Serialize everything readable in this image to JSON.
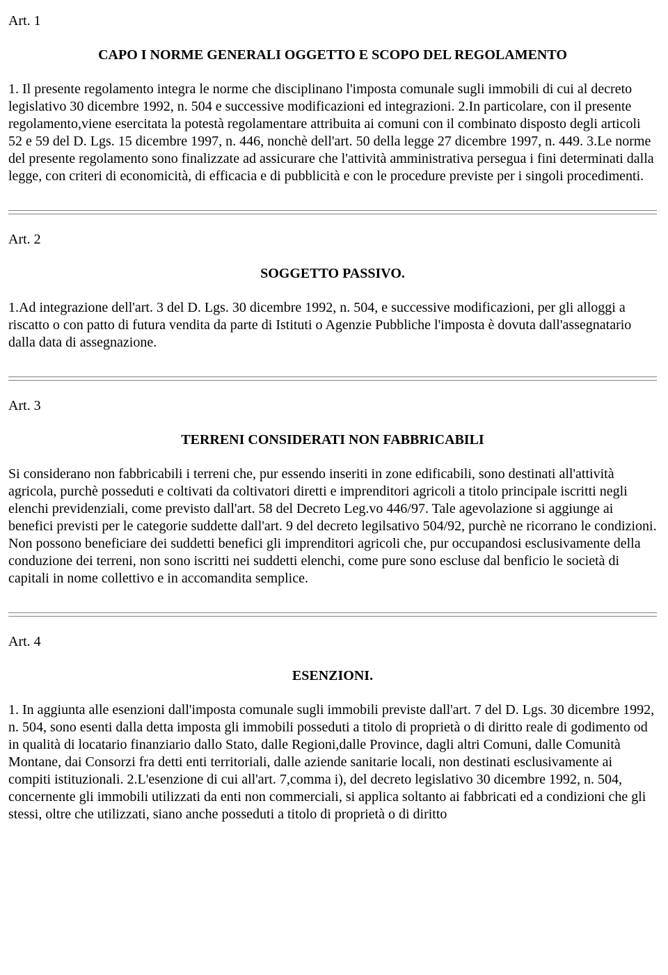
{
  "article1": {
    "label": "Art. 1",
    "title": "CAPO I NORME GENERALI OGGETTO E SCOPO DEL REGOLAMENTO",
    "body": "1. Il presente regolamento integra le norme che disciplinano l'imposta comunale sugli immobili di cui al decreto legislativo 30 dicembre 1992, n. 504 e successive modificazioni ed integrazioni. 2.In particolare, con il presente regolamento,viene esercitata la potestà regolamentare attribuita ai comuni con il combinato disposto degli articoli 52 e 59 del D. Lgs. 15 dicembre 1997, n. 446, nonchè dell'art. 50 della legge 27 dicembre 1997, n. 449. 3.Le norme del presente regolamento sono finalizzate ad assicurare che l'attività amministrativa persegua i fini determinati dalla legge, con criteri di economicità, di efficacia e di pubblicità e con le procedure previste per i singoli procedimenti."
  },
  "article2": {
    "label": "Art. 2",
    "title": "SOGGETTO PASSIVO.",
    "body": "1.Ad integrazione dell'art. 3 del D. Lgs. 30 dicembre 1992, n. 504, e successive modificazioni, per gli alloggi a riscatto o con patto di futura vendita da parte di Istituti o Agenzie Pubbliche l'imposta è dovuta dall'assegnatario dalla data di assegnazione."
  },
  "article3": {
    "label": "Art. 3",
    "title": "TERRENI CONSIDERATI NON FABBRICABILI",
    "body": "Si considerano non fabbricabili i terreni che, pur essendo inseriti in zone edificabili, sono destinati all'attività agricola, purchè posseduti e coltivati da coltivatori diretti e imprenditori agricoli a titolo principale iscritti negli elenchi previdenziali, come previsto dall'art. 58 del Decreto Leg.vo 446/97. Tale agevolazione si aggiunge ai benefici previsti per le categorie suddette dall'art. 9 del decreto legilsativo 504/92, purchè ne ricorrano le condizioni. Non possono beneficiare dei suddetti benefici gli imprenditori agricoli che, pur occupandosi esclusivamente della conduzione dei terreni, non sono iscritti nei suddetti elenchi, come pure sono escluse dal benficio le società di capitali in nome collettivo e in accomandita semplice."
  },
  "article4": {
    "label": "Art. 4",
    "title": "ESENZIONI.",
    "body": "1. In aggiunta alle esenzioni dall'imposta comunale sugli immobili previste dall'art. 7 del D. Lgs. 30 dicembre 1992, n. 504, sono esenti dalla detta imposta gli immobili posseduti a titolo di proprietà o di diritto reale di godimento od in qualità di locatario finanziario dallo Stato, dalle Regioni,dalle Province, dagli altri Comuni, dalle Comunità Montane, dai Consorzi fra detti enti territoriali, dalle aziende sanitarie locali, non destinati esclusivamente ai compiti istituzionali. 2.L'esenzione di cui all'art. 7,comma i), del decreto legislativo 30 dicembre 1992, n. 504, concernente gli immobili utilizzati da enti non commerciali, si applica soltanto ai fabbricati ed a condizioni che gli stessi, oltre che utilizzati, siano anche posseduti a titolo di proprietà o di diritto"
  }
}
